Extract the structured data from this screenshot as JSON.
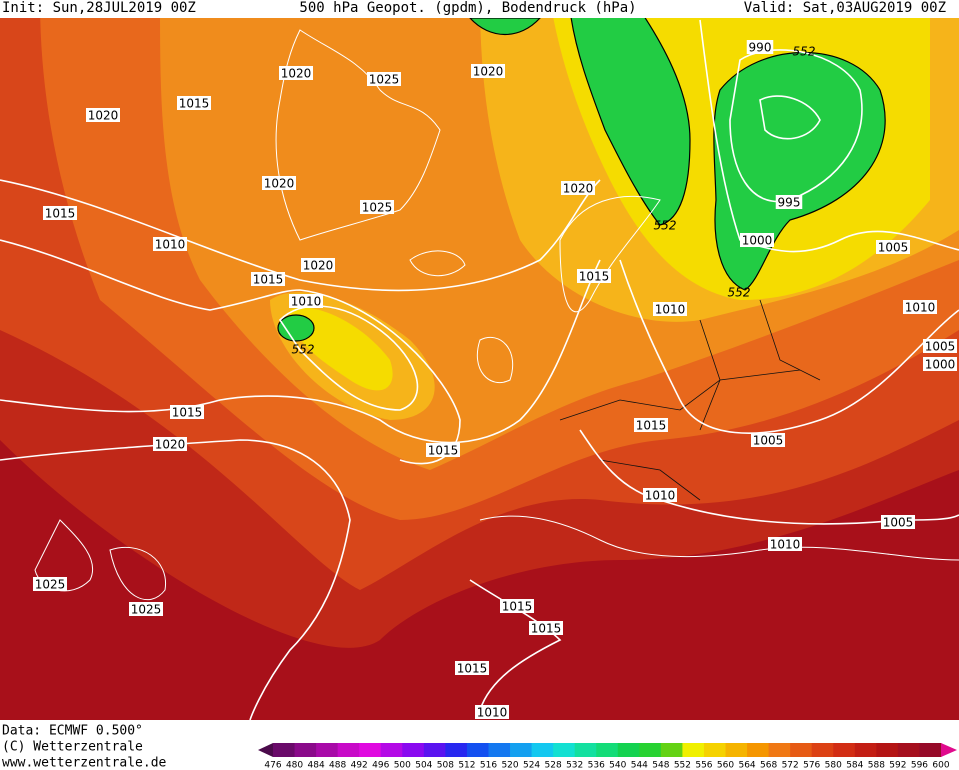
{
  "header": {
    "init": "Init: Sun,28JUL2019 00Z",
    "title": "500 hPa Geopot. (gpdm), Bodendruck (hPa)",
    "valid": "Valid: Sat,03AUG2019 00Z"
  },
  "footer": {
    "data": "Data: ECMWF  0.500°",
    "copyright": "(C) Wetterzentrale",
    "url": "www.wetterzentrale.de"
  },
  "isobar_labels": [
    1020,
    1025,
    1020,
    1015,
    1020,
    1020,
    1025,
    1020,
    1015,
    1010,
    1020,
    1015,
    1015,
    1010,
    1010,
    1015,
    1020,
    1015,
    1015,
    1005,
    1010,
    1005,
    1010,
    1025,
    1025,
    1015,
    1015,
    1015,
    1010,
    990,
    995,
    1000,
    1005,
    1010,
    1005,
    1000
  ],
  "height_labels": [
    552,
    552,
    552,
    552
  ],
  "colorbar": {
    "labels": [
      476,
      480,
      484,
      488,
      492,
      496,
      500,
      504,
      508,
      512,
      516,
      520,
      524,
      528,
      532,
      536,
      540,
      544,
      548,
      552,
      556,
      560,
      564,
      568,
      572,
      576,
      580,
      584,
      588,
      592,
      596,
      600
    ],
    "colors": [
      "#4b0a4b",
      "#6a0a6a",
      "#8a0a8a",
      "#a80aa8",
      "#c80ac8",
      "#e00ae0",
      "#b40ae6",
      "#8a0af0",
      "#5a14f0",
      "#2828f0",
      "#1450f0",
      "#1478f0",
      "#14a0f0",
      "#14c8f0",
      "#14e0d2",
      "#14e0a0",
      "#14dc78",
      "#14d250",
      "#28d232",
      "#64d214",
      "#f0f000",
      "#f5d200",
      "#f5b400",
      "#f59600",
      "#f07814",
      "#e65a14",
      "#dc4114",
      "#d22d14",
      "#c31e14",
      "#b41414",
      "#a50f1e",
      "#960a28",
      "#e00a8c"
    ]
  }
}
